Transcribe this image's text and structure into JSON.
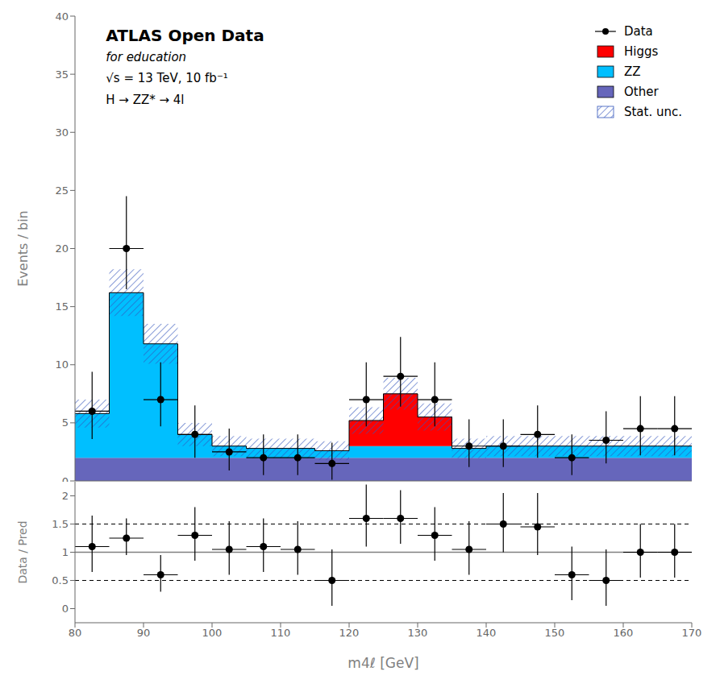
{
  "chart_data": [
    {
      "type": "bar",
      "stacked": true,
      "bins": [
        80,
        85,
        90,
        95,
        100,
        105,
        110,
        115,
        120,
        125,
        130,
        135,
        140,
        145,
        150,
        155,
        160,
        165,
        170
      ],
      "series": [
        {
          "name": "Other",
          "color": "#6666bb",
          "values": [
            2.0,
            2.0,
            2.0,
            2.0,
            2.0,
            2.0,
            2.0,
            2.0,
            2.0,
            2.0,
            2.0,
            2.0,
            2.0,
            2.0,
            2.0,
            2.0,
            2.0,
            2.0
          ]
        },
        {
          "name": "ZZ",
          "color": "#00bfff",
          "values": [
            3.8,
            14.2,
            9.8,
            2.0,
            1.0,
            0.8,
            0.8,
            0.6,
            1.0,
            1.0,
            1.0,
            0.8,
            1.0,
            1.0,
            1.0,
            1.0,
            1.0,
            1.0
          ]
        },
        {
          "name": "Higgs",
          "color": "#ff0000",
          "values": [
            0.0,
            0.0,
            0.0,
            0.0,
            0.0,
            0.0,
            0.0,
            0.0,
            2.2,
            4.5,
            2.5,
            0.0,
            0.0,
            0.0,
            0.0,
            0.0,
            0.0,
            0.0
          ]
        },
        {
          "name": "Stat. unc.",
          "type": "band",
          "color": "#3355bb",
          "errors": [
            1.20416,
            2.01246,
            1.71756,
            1.0,
            0.86603,
            0.83666,
            0.83666,
            0.80623,
            1.14018,
            1.36931,
            1.1726,
            0.83666,
            0.86603,
            0.86603,
            0.86603,
            0.86603,
            0.86603,
            0.86603
          ]
        },
        {
          "name": "Data",
          "type": "scatter",
          "color": "black",
          "marker": "o",
          "x": [
            82.5,
            87.5,
            92.5,
            97.5,
            102.5,
            107.5,
            112.5,
            117.5,
            122.5,
            127.5,
            132.5,
            137.5,
            142.5,
            147.5,
            152.5,
            157.5,
            162.5,
            167.5
          ],
          "values": [
            6.0,
            20.0,
            7.0,
            4.0,
            2.5,
            2.0,
            2.0,
            1.5,
            7.0,
            9.0,
            7.0,
            3.0,
            3.0,
            4.0,
            2.0,
            3.5,
            4.5,
            4.5
          ],
          "errors_up": [
            3.4,
            4.5,
            3.2,
            2.5,
            2.0,
            2.0,
            2.0,
            1.8,
            3.2,
            3.4,
            3.2,
            2.3,
            2.3,
            2.5,
            2.0,
            2.5,
            2.8,
            2.8
          ],
          "errors_down": [
            2.4,
            3.5,
            2.3,
            2.0,
            1.6,
            1.5,
            1.5,
            1.4,
            2.3,
            2.6,
            2.3,
            1.8,
            1.8,
            2.0,
            1.5,
            2.0,
            2.3,
            2.3
          ]
        }
      ],
      "xlim": [
        80,
        170
      ],
      "xticks": [
        80,
        90,
        100,
        110,
        120,
        130,
        140,
        150,
        160,
        170
      ],
      "ylim": [
        0,
        40
      ],
      "yticks": [
        0,
        5,
        10,
        15,
        20,
        25,
        30,
        35,
        40
      ],
      "ylabel": "Events / bin",
      "annotations": [
        "ATLAS Open Data",
        "for education",
        "√s = 13 TeV, 10 fb⁻¹",
        "H → ZZ* → 4l"
      ],
      "legend": "upper right",
      "grid": false,
      "tick_labels": "y"
    },
    {
      "type": "scatter",
      "color": "black",
      "marker": "o",
      "bins": [
        80,
        85,
        90,
        95,
        100,
        105,
        110,
        115,
        120,
        125,
        130,
        135,
        140,
        145,
        150,
        155,
        160,
        165,
        170
      ],
      "x": [
        82.5,
        87.5,
        92.5,
        97.5,
        102.5,
        107.5,
        112.5,
        117.5,
        122.5,
        127.5,
        132.5,
        137.5,
        142.5,
        147.5,
        152.5,
        157.5,
        162.5,
        167.5
      ],
      "values": [
        1.1,
        1.25,
        0.6,
        1.3,
        1.05,
        1.1,
        1.05,
        0.5,
        1.6,
        1.6,
        1.3,
        1.05,
        1.5,
        1.45,
        0.6,
        0.5,
        1.0,
        1.0
      ],
      "errors_up": [
        0.55,
        0.35,
        0.35,
        0.5,
        0.5,
        0.5,
        0.5,
        0.55,
        0.6,
        0.5,
        0.5,
        0.5,
        0.55,
        0.6,
        0.5,
        0.55,
        0.5,
        0.5
      ],
      "errors_down": [
        0.45,
        0.3,
        0.3,
        0.45,
        0.45,
        0.45,
        0.45,
        0.45,
        0.5,
        0.45,
        0.45,
        0.45,
        0.5,
        0.5,
        0.45,
        0.45,
        0.45,
        0.45
      ],
      "hlines": [
        {
          "value": 1.0,
          "color": "gray",
          "line_style": "solid"
        },
        {
          "value": 1.5,
          "color": "black",
          "line_style": "dashed"
        },
        {
          "value": 0.5,
          "color": "black",
          "line_style": "dashed"
        }
      ],
      "xlim": [
        80,
        170
      ],
      "xticks": [
        80,
        90,
        100,
        110,
        120,
        130,
        140,
        150,
        160,
        170
      ],
      "ylim": [
        -0.25,
        2.25
      ],
      "yticks": [
        0,
        0.5,
        1,
        1.5,
        2
      ],
      "xlabel": "m4ℓ [GeV]",
      "ylabel": "Data / Pred",
      "grid": false
    }
  ]
}
